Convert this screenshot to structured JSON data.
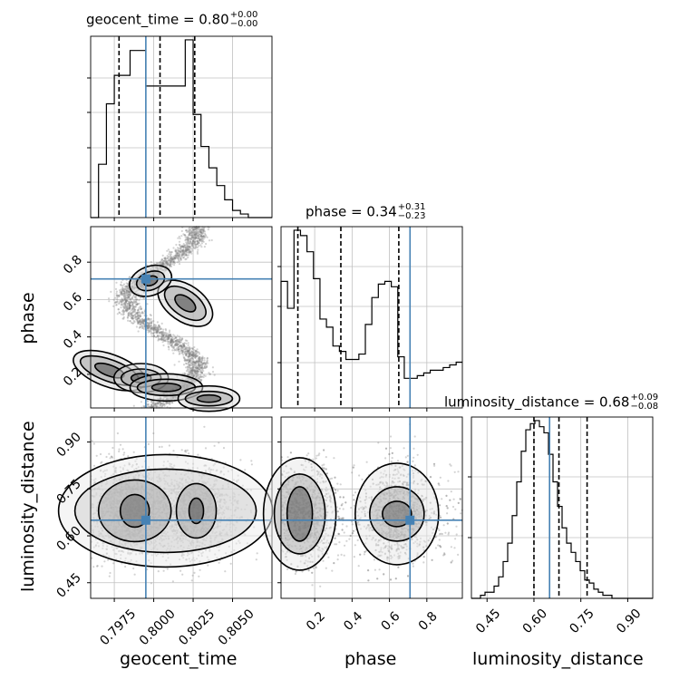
{
  "chart_data": {
    "type": "corner",
    "parameters": [
      "geocent_time",
      "phase",
      "luminosity_distance"
    ],
    "truths": {
      "geocent_time": 0.7995,
      "phase": 0.71,
      "luminosity_distance": 0.65
    },
    "titles": [
      {
        "param": "geocent_time",
        "text": "geocent_time = 0.80",
        "plus": "+0.00",
        "minus": "−0.00"
      },
      {
        "param": "phase",
        "text": "phase = 0.34",
        "plus": "+0.31",
        "minus": "−0.23"
      },
      {
        "param": "luminosity_distance",
        "text": "luminosity_distance = 0.68",
        "plus": "+0.09",
        "minus": "−0.08"
      }
    ],
    "axis_labels": {
      "geocent_time": "geocent_time",
      "phase": "phase",
      "luminosity_distance": "luminosity_distance"
    },
    "ranges": {
      "geocent_time": [
        0.796,
        0.8075
      ],
      "phase": [
        0.02,
        0.99
      ],
      "luminosity_distance": [
        0.4,
        0.98
      ]
    },
    "ticks": {
      "geocent_time": [
        "0.7975",
        "0.8000",
        "0.8025",
        "0.8050"
      ],
      "phase": [
        "0.2",
        "0.4",
        "0.6",
        "0.8"
      ],
      "luminosity_distance": [
        "0.45",
        "0.60",
        "0.75",
        "0.90"
      ]
    },
    "quantiles": {
      "geocent_time": [
        0.7978,
        0.8004,
        0.8026
      ],
      "phase": [
        0.11,
        0.34,
        0.65
      ],
      "luminosity_distance": [
        0.6,
        0.68,
        0.77
      ]
    },
    "hist_geocent_time": {
      "edges_start": 0.796,
      "bin_width": 0.0005,
      "counts": [
        0,
        15,
        32,
        40,
        40,
        47,
        47,
        37,
        37,
        37,
        37,
        37,
        50,
        29,
        20,
        14,
        9,
        5,
        2,
        1,
        0,
        0,
        0
      ]
    },
    "hist_phase": {
      "edges_start": 0.02,
      "bin_width": 0.0347,
      "counts": [
        47,
        37,
        66,
        64,
        58,
        48,
        33,
        30,
        23,
        21,
        18,
        18,
        20,
        31,
        41,
        46,
        47,
        45,
        19,
        11,
        11,
        12,
        13,
        14,
        14,
        15,
        16,
        17
      ]
    },
    "hist_luminosity_distance": {
      "edges_start": 0.4,
      "bin_width": 0.0145,
      "counts": [
        0,
        0,
        1,
        2,
        2,
        4,
        7,
        12,
        18,
        27,
        38,
        48,
        55,
        57,
        58,
        56,
        54,
        47,
        38,
        30,
        23,
        18,
        15,
        12,
        9,
        6,
        5,
        3,
        2,
        1,
        1,
        0,
        0,
        0,
        0,
        0,
        0,
        0,
        0,
        0
      ]
    }
  },
  "labels": {
    "x_geocent_time": "geocent_time",
    "x_phase": "phase",
    "x_luminosity_distance": "luminosity_distance",
    "y_phase": "phase",
    "y_luminosity_distance": "luminosity_distance"
  },
  "colors": {
    "truth": "#4682b4",
    "hist": "#000000",
    "grid": "#c0c0c0",
    "scatter": "#808080"
  }
}
